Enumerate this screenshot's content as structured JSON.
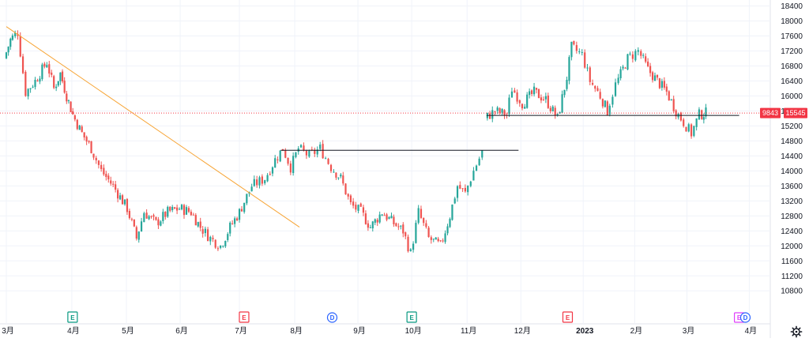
{
  "chart_data": {
    "type": "candlestick",
    "ylim": [
      9920,
      18560
    ],
    "y_ticks": [
      10800,
      11200,
      11600,
      12000,
      12400,
      12800,
      13200,
      13600,
      14000,
      14400,
      14800,
      15200,
      15600,
      16000,
      16400,
      16800,
      17200,
      17600,
      18000,
      18400
    ],
    "x_ticks": [
      {
        "label": "3月",
        "t": 0,
        "bold": false
      },
      {
        "label": "4月",
        "t": 84,
        "bold": false
      },
      {
        "label": "5月",
        "t": 154,
        "bold": false
      },
      {
        "label": "6月",
        "t": 223,
        "bold": false
      },
      {
        "label": "7月",
        "t": 299,
        "bold": false
      },
      {
        "label": "8月",
        "t": 370,
        "bold": false
      },
      {
        "label": "9月",
        "t": 451,
        "bold": false
      },
      {
        "label": "10月",
        "t": 520,
        "bold": false
      },
      {
        "label": "11月",
        "t": 591,
        "bold": false
      },
      {
        "label": "12月",
        "t": 660,
        "bold": false
      },
      {
        "label": "2023",
        "t": 740,
        "bold": true
      },
      {
        "label": "2月",
        "t": 806,
        "bold": false
      },
      {
        "label": "3月",
        "t": 873,
        "bold": false
      },
      {
        "label": "4月",
        "t": 953,
        "bold": false
      }
    ],
    "key_points": [
      {
        "t": 0,
        "v": 17000
      },
      {
        "t": 8,
        "v": 17500
      },
      {
        "t": 18,
        "v": 17700
      },
      {
        "t": 28,
        "v": 16100
      },
      {
        "t": 40,
        "v": 16400
      },
      {
        "t": 55,
        "v": 16900
      },
      {
        "t": 64,
        "v": 16200
      },
      {
        "t": 72,
        "v": 16600
      },
      {
        "t": 80,
        "v": 16000
      },
      {
        "t": 88,
        "v": 15500
      },
      {
        "t": 100,
        "v": 15000
      },
      {
        "t": 112,
        "v": 14600
      },
      {
        "t": 125,
        "v": 14000
      },
      {
        "t": 140,
        "v": 13600
      },
      {
        "t": 158,
        "v": 13000
      },
      {
        "t": 170,
        "v": 12200
      },
      {
        "t": 180,
        "v": 12900
      },
      {
        "t": 195,
        "v": 12600
      },
      {
        "t": 210,
        "v": 12900
      },
      {
        "t": 225,
        "v": 13000
      },
      {
        "t": 240,
        "v": 12900
      },
      {
        "t": 252,
        "v": 12500
      },
      {
        "t": 265,
        "v": 12200
      },
      {
        "t": 278,
        "v": 12000
      },
      {
        "t": 290,
        "v": 12500
      },
      {
        "t": 302,
        "v": 12900
      },
      {
        "t": 318,
        "v": 13600
      },
      {
        "t": 335,
        "v": 13800
      },
      {
        "t": 348,
        "v": 14300
      },
      {
        "t": 358,
        "v": 14600
      },
      {
        "t": 368,
        "v": 14100
      },
      {
        "t": 378,
        "v": 14600
      },
      {
        "t": 392,
        "v": 14400
      },
      {
        "t": 406,
        "v": 14600
      },
      {
        "t": 420,
        "v": 14100
      },
      {
        "t": 432,
        "v": 13800
      },
      {
        "t": 445,
        "v": 13100
      },
      {
        "t": 458,
        "v": 12900
      },
      {
        "t": 470,
        "v": 12500
      },
      {
        "t": 485,
        "v": 12900
      },
      {
        "t": 500,
        "v": 12600
      },
      {
        "t": 512,
        "v": 12400
      },
      {
        "t": 522,
        "v": 11800
      },
      {
        "t": 532,
        "v": 12900
      },
      {
        "t": 545,
        "v": 12200
      },
      {
        "t": 560,
        "v": 12000
      },
      {
        "t": 572,
        "v": 12800
      },
      {
        "t": 582,
        "v": 13600
      },
      {
        "t": 592,
        "v": 13400
      },
      {
        "t": 603,
        "v": 14000
      },
      {
        "t": 614,
        "v": 14500
      },
      {
        "t": 617,
        "v": 15400
      },
      {
        "t": 630,
        "v": 15600
      },
      {
        "t": 645,
        "v": 15500
      },
      {
        "t": 652,
        "v": 16200
      },
      {
        "t": 665,
        "v": 15800
      },
      {
        "t": 680,
        "v": 16100
      },
      {
        "t": 695,
        "v": 15900
      },
      {
        "t": 710,
        "v": 15400
      },
      {
        "t": 722,
        "v": 16500
      },
      {
        "t": 728,
        "v": 17300
      },
      {
        "t": 742,
        "v": 17100
      },
      {
        "t": 752,
        "v": 16400
      },
      {
        "t": 765,
        "v": 16000
      },
      {
        "t": 774,
        "v": 15600
      },
      {
        "t": 785,
        "v": 16300
      },
      {
        "t": 800,
        "v": 17000
      },
      {
        "t": 814,
        "v": 17200
      },
      {
        "t": 826,
        "v": 16700
      },
      {
        "t": 838,
        "v": 16400
      },
      {
        "t": 850,
        "v": 16100
      },
      {
        "t": 862,
        "v": 15600
      },
      {
        "t": 872,
        "v": 15300
      },
      {
        "t": 882,
        "v": 15000
      },
      {
        "t": 892,
        "v": 15500
      },
      {
        "t": 900,
        "v": 15545
      }
    ],
    "gap_after_t": 614,
    "trendline": {
      "t1": 0,
      "v1": 17850,
      "t2": 376,
      "v2": 12500,
      "color": "#f7a434"
    },
    "horizontal_lines": [
      {
        "t1": 352,
        "t2": 657,
        "v": 14550
      },
      {
        "t1": 616,
        "t2": 940,
        "v": 15480
      }
    ],
    "current_price_line": {
      "v": 15545,
      "color": "#f23645"
    },
    "price_labels": [
      {
        "text": "9843",
        "v": 15545,
        "color": "#f23645"
      },
      {
        "text": "15545",
        "v": 15545,
        "color": "#f23645"
      }
    ],
    "event_badges": [
      {
        "text": "E",
        "t": 85,
        "color": "#089981",
        "shape": "pin"
      },
      {
        "text": "E",
        "t": 305,
        "color": "#f23645",
        "shape": "pin-down"
      },
      {
        "text": "D",
        "t": 418,
        "color": "#2962ff",
        "shape": "circle"
      },
      {
        "text": "E",
        "t": 520,
        "color": "#089981",
        "shape": "pin"
      },
      {
        "text": "E",
        "t": 720,
        "color": "#f23645",
        "shape": "pin-down"
      },
      {
        "text": "E",
        "t": 940,
        "color": "#e040fb",
        "shape": "box"
      },
      {
        "text": "D",
        "t": 948,
        "color": "#2962ff",
        "shape": "circle"
      }
    ],
    "colors": {
      "up": "#26a69a",
      "down": "#ef5350",
      "grid": "#e0e3eb"
    }
  },
  "ui": {
    "settings_icon": "gear-icon"
  }
}
